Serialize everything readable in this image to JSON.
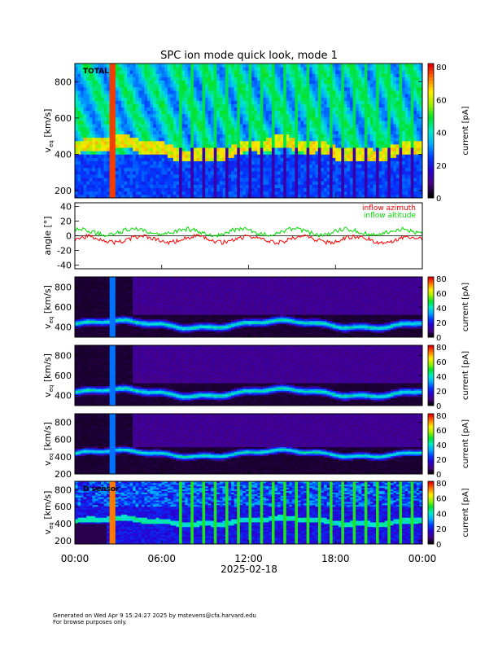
{
  "chart_data": {
    "type": "heatmap",
    "title": "SPC ion mode quick look, mode 1",
    "date_label": "2025-02-18",
    "x_tick_labels": [
      "00:00",
      "06:00",
      "12:00",
      "18:00",
      "00:00"
    ],
    "x_range_hours": [
      0,
      24
    ],
    "colorbar": {
      "label": "current [pA]",
      "range": [
        0,
        82
      ],
      "ticks": [
        0,
        20,
        40,
        60,
        80
      ]
    },
    "panels": [
      {
        "kind": "spectrogram",
        "style": "total",
        "label": "TOTAL",
        "ylabel_main": "v",
        "ylabel_sub": "eq",
        "ylabel_unit": "[km/s]",
        "yrange": [
          160,
          900
        ],
        "yticks": [
          200,
          400,
          600,
          800
        ],
        "bulk_speed_kms": 430
      },
      {
        "kind": "line",
        "ylabel": "angle [°]",
        "yrange": [
          -45,
          45
        ],
        "yticks": [
          -40,
          -20,
          0,
          20,
          40
        ],
        "series": [
          {
            "name": "inflow azimuth",
            "color": "#ff0000",
            "mean_deg": -5
          },
          {
            "name": "inflow altitude",
            "color": "#00dd00",
            "mean_deg": 5
          }
        ]
      },
      {
        "kind": "spectrogram",
        "style": "sensor",
        "label": "",
        "ylabel_main": "v",
        "ylabel_sub": "eq",
        "ylabel_unit": "[km/s]",
        "yrange": [
          300,
          900
        ],
        "yticks": [
          400,
          600,
          800
        ],
        "bulk_speed_kms": 430
      },
      {
        "kind": "spectrogram",
        "style": "sensor",
        "label": "",
        "ylabel_main": "v",
        "ylabel_sub": "eq",
        "ylabel_unit": "[km/s]",
        "yrange": [
          300,
          900
        ],
        "yticks": [
          400,
          600,
          800
        ],
        "bulk_speed_kms": 430
      },
      {
        "kind": "spectrogram",
        "style": "sensor",
        "label": "",
        "ylabel_main": "v",
        "ylabel_sub": "eq",
        "ylabel_unit": "[km/s]",
        "yrange": [
          200,
          900
        ],
        "yticks": [
          200,
          400,
          600,
          800
        ],
        "bulk_speed_kms": 440
      },
      {
        "kind": "spectrogram",
        "style": "dsensor",
        "label": "D sensor",
        "ylabel_main": "v",
        "ylabel_sub": "eq",
        "ylabel_unit": "[km/s]",
        "yrange": [
          160,
          900
        ],
        "yticks": [
          200,
          400,
          600,
          800
        ],
        "bulk_speed_kms": 430
      }
    ]
  },
  "footer": {
    "line1": "Generated on Wed Apr  9 15:24:27 2025 by mstevens@cfa.harvard.edu",
    "line2": "For browse purposes only."
  }
}
